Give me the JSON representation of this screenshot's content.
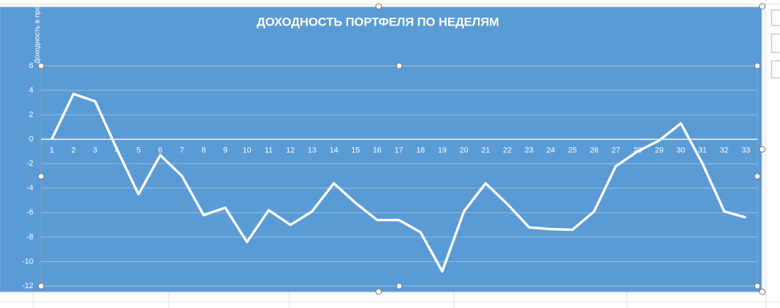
{
  "chart_data": {
    "type": "line",
    "title": "ДОХОДНОСТЬ ПОРТФЕЛЯ ПО НЕДЕЛЯМ",
    "y_label": "Доходность в процентах",
    "categories": [
      1,
      2,
      3,
      4,
      5,
      6,
      7,
      8,
      9,
      10,
      11,
      12,
      13,
      14,
      15,
      16,
      17,
      18,
      19,
      20,
      21,
      22,
      23,
      24,
      25,
      26,
      27,
      28,
      29,
      30,
      31,
      32,
      33
    ],
    "values": [
      0,
      3.7,
      3.1,
      -0.8,
      -4.5,
      -1.3,
      -3.0,
      -6.2,
      -5.6,
      -8.4,
      -5.8,
      -7.0,
      -5.9,
      -3.6,
      -5.2,
      -6.6,
      -6.6,
      -7.6,
      -10.8,
      -5.9,
      -3.6,
      -5.3,
      -7.2,
      -7.35,
      -7.4,
      -5.9,
      -2.2,
      -1.0,
      -0.1,
      1.3,
      -2.0,
      -5.9,
      -6.4
    ],
    "color": "#ffffff",
    "ylim": [
      -12,
      6
    ],
    "yticks": [
      -12,
      -10,
      -8,
      -6,
      -4,
      -2,
      0,
      2,
      4,
      6
    ],
    "grid": true
  }
}
